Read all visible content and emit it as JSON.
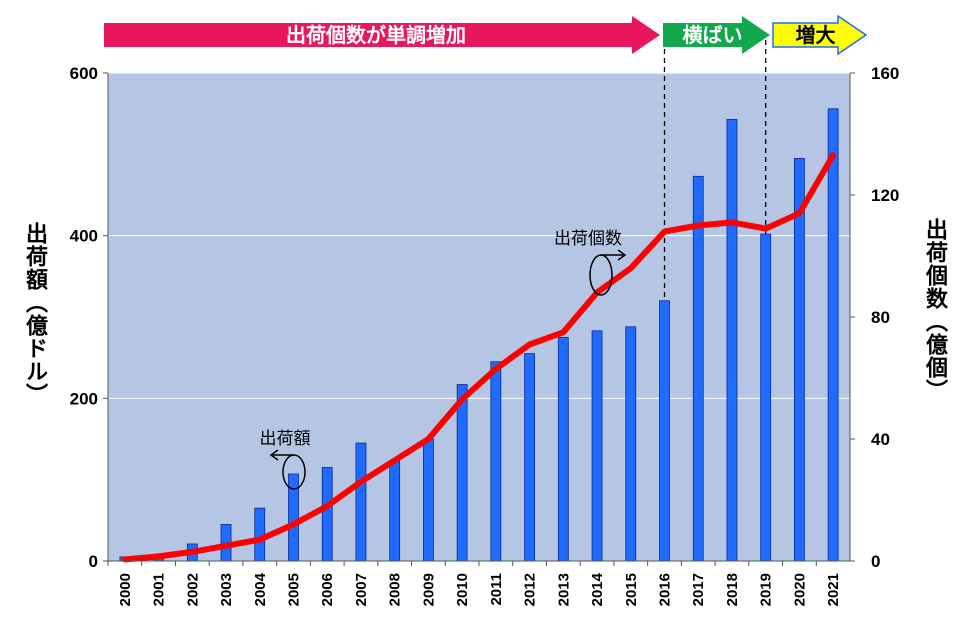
{
  "chart_data": {
    "type": "bar+line",
    "categories": [
      "2000",
      "2001",
      "2002",
      "2003",
      "2004",
      "2005",
      "2006",
      "2007",
      "2008",
      "2009",
      "2010",
      "2011",
      "2012",
      "2013",
      "2014",
      "2015",
      "2016",
      "2017",
      "2018",
      "2019",
      "2020",
      "2021"
    ],
    "series": [
      {
        "name": "出荷額",
        "type": "bar",
        "axis": "left",
        "color": "#1f6bff",
        "values": [
          5,
          8,
          21,
          45,
          65,
          107,
          115,
          145,
          123,
          150,
          217,
          245,
          255,
          275,
          283,
          288,
          320,
          473,
          543,
          402,
          495,
          556
        ]
      },
      {
        "name": "出荷個数",
        "type": "line",
        "axis": "right",
        "color": "#ff0000",
        "values": [
          0.5,
          1.5,
          3,
          5,
          7,
          12,
          18,
          26,
          33,
          40,
          53,
          63,
          71,
          75,
          88,
          96,
          108,
          110,
          111,
          109,
          114,
          133
        ]
      }
    ],
    "ylabel": "出荷額（億ドル）",
    "y2label": "出荷個数（億個）",
    "ylim": [
      0,
      600
    ],
    "y2lim": [
      0,
      160
    ],
    "yticks": [
      "0",
      "200",
      "400",
      "600"
    ],
    "y2ticks": [
      "0",
      "40",
      "80",
      "120",
      "160"
    ],
    "annotations": {
      "bar_series_label": "出荷額",
      "line_series_label": "出荷個数"
    },
    "phases": [
      {
        "label": "出荷個数が単調増加",
        "color": "#e8175d",
        "text_color": "#ffffff",
        "start": "2000",
        "end": "2016"
      },
      {
        "label": "横ばい",
        "color": "#11a84b",
        "text_color": "#ffffff",
        "start": "2016",
        "end": "2019"
      },
      {
        "label": "増大",
        "color": "#ffff00",
        "text_color": "#000000",
        "start": "2019",
        "end": "2021"
      }
    ],
    "plot_background": "#b4c6e4"
  }
}
